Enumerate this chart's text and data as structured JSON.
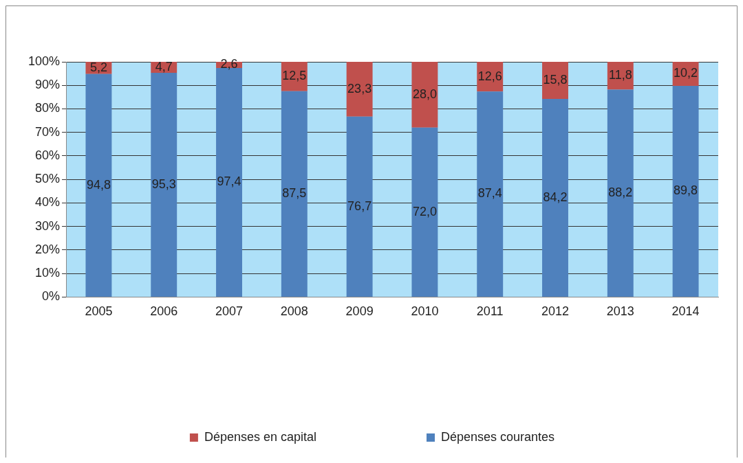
{
  "chart_data": {
    "type": "bar",
    "stacked": true,
    "categories": [
      "2005",
      "2006",
      "2007",
      "2008",
      "2009",
      "2010",
      "2011",
      "2012",
      "2013",
      "2014"
    ],
    "series": [
      {
        "name": "Dépenses courantes",
        "color": "#4f81bd",
        "values": [
          94.8,
          95.3,
          97.4,
          87.5,
          76.7,
          72.0,
          87.4,
          84.2,
          88.2,
          89.8
        ],
        "value_labels": [
          "94,8",
          "95,3",
          "97,4",
          "87,5",
          "76,7",
          "72,0",
          "87,4",
          "84,2",
          "88,2",
          "89,8"
        ]
      },
      {
        "name": "Dépenses en capital",
        "color": "#c0504d",
        "values": [
          5.2,
          4.7,
          2.6,
          12.5,
          23.3,
          28.0,
          12.6,
          15.8,
          11.8,
          10.2
        ],
        "value_labels": [
          "5,2",
          "4,7",
          "2,6",
          "12,5",
          "23,3",
          "28,0",
          "12,6",
          "15,8",
          "11,8",
          "10,2"
        ]
      }
    ],
    "ylim": [
      0,
      100
    ],
    "yticks": [
      {
        "value": 0,
        "label": "0%"
      },
      {
        "value": 10,
        "label": "10%"
      },
      {
        "value": 20,
        "label": "20%"
      },
      {
        "value": 30,
        "label": "30%"
      },
      {
        "value": 40,
        "label": "40%"
      },
      {
        "value": 50,
        "label": "50%"
      },
      {
        "value": 60,
        "label": "60%"
      },
      {
        "value": 70,
        "label": "70%"
      },
      {
        "value": 80,
        "label": "80%"
      },
      {
        "value": 90,
        "label": "90%"
      },
      {
        "value": 100,
        "label": "100%"
      }
    ],
    "grid": "y",
    "legend": "bottom"
  }
}
